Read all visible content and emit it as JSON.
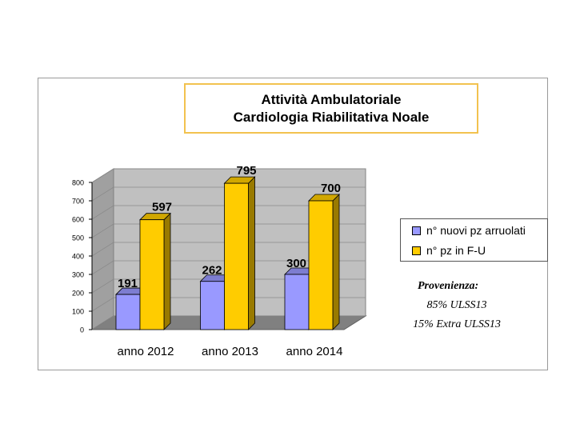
{
  "chart_data": {
    "type": "bar",
    "title": "Attività Ambulatoriale",
    "subtitle": "Cardiologia Riabilitativa Noale",
    "categories": [
      "anno 2012",
      "anno 2013",
      "anno 2014"
    ],
    "series": [
      {
        "name": "n° nuovi pz arruolati",
        "values": [
          191,
          262,
          300
        ],
        "color": "#9999ff"
      },
      {
        "name": "n°  pz in F-U",
        "values": [
          597,
          795,
          700
        ],
        "color": "#ffcc00"
      }
    ],
    "ylim": [
      0,
      800
    ],
    "yticks": [
      "0",
      "100",
      "200",
      "300",
      "400",
      "500",
      "600",
      "700",
      "800"
    ],
    "xlabel": "",
    "ylabel": "",
    "grid": true,
    "legend": "right"
  },
  "notes": {
    "heading": "Provenienza:",
    "line1": "85% ULSS13",
    "line2": "15% Extra ULSS13"
  }
}
